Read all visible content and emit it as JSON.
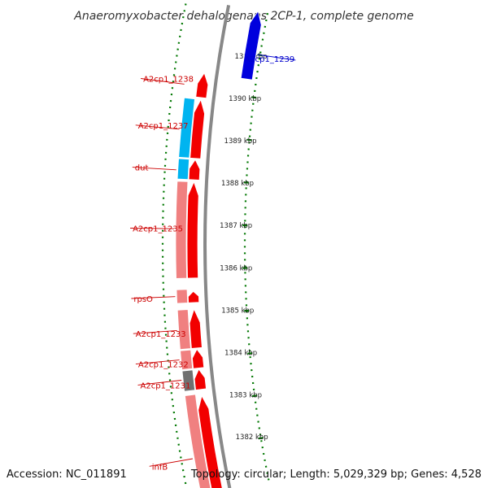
{
  "title": "Anaeromyxobacter dehalogenans 2CP-1, complete genome",
  "accession": "Accession: NC_011891",
  "summary": "Topology: circular; Length: 5,029,329 bp; Genes: 4,528",
  "colors": {
    "cds_forward": "#f20000",
    "cds_reverse": "#f08080",
    "highlight_cyan": "#00b4f0",
    "unknown_gray": "#707070",
    "selected_blue": "#0000dd",
    "backbone": "#888888",
    "scale_dots": "#007700",
    "label_red": "#cc0000",
    "label_blue": "#0000cc"
  },
  "scale": {
    "unit": "kbp",
    "ticks": [
      "1382 kbp",
      "1383 kbp",
      "1384 kbp",
      "1385 kbp",
      "1386 kbp",
      "1387 kbp",
      "1388 kbp",
      "1389 kbp",
      "1390 kbp",
      "1391 kbp"
    ]
  },
  "genes": [
    {
      "label": "infB",
      "start": 1381.0,
      "end": 1383.15,
      "track": "outer",
      "color": "cds_forward"
    },
    {
      "label": "infB",
      "start": 1381.0,
      "end": 1383.2,
      "track": "inner",
      "color": "cds_reverse"
    },
    {
      "label": "A2cp1_1231",
      "start": 1383.3,
      "end": 1383.75,
      "track": "outer",
      "color": "cds_forward"
    },
    {
      "label": "A2cp1_1231",
      "start": 1383.3,
      "end": 1383.75,
      "track": "inner",
      "color": "unknown_gray"
    },
    {
      "label": "A2cp1_1232",
      "start": 1383.78,
      "end": 1384.2,
      "track": "outer",
      "color": "cds_forward"
    },
    {
      "label": "A2cp1_1232",
      "start": 1383.78,
      "end": 1384.2,
      "track": "inner",
      "color": "cds_reverse"
    },
    {
      "label": "A2cp1_1233",
      "start": 1384.23,
      "end": 1385.1,
      "track": "outer",
      "color": "cds_forward"
    },
    {
      "label": "A2cp1_1233",
      "start": 1384.23,
      "end": 1385.1,
      "track": "inner",
      "color": "cds_reverse"
    },
    {
      "label": "rpsO",
      "start": 1385.25,
      "end": 1385.5,
      "track": "outer",
      "color": "cds_forward"
    },
    {
      "label": "rpsO",
      "start": 1385.25,
      "end": 1385.55,
      "track": "inner",
      "color": "cds_reverse"
    },
    {
      "label": "A2cp1_1235",
      "start": 1385.8,
      "end": 1387.95,
      "track": "outer",
      "color": "cds_forward"
    },
    {
      "label": "A2cp1_1235",
      "start": 1385.8,
      "end": 1387.95,
      "track": "inner",
      "color": "cds_reverse"
    },
    {
      "label": "dut",
      "start": 1388.0,
      "end": 1388.45,
      "track": "outer",
      "color": "cds_forward"
    },
    {
      "label": "dut",
      "start": 1388.0,
      "end": 1388.45,
      "track": "inner",
      "color": "highlight_cyan"
    },
    {
      "label": "A2cp1_1237",
      "start": 1388.48,
      "end": 1389.8,
      "track": "outer",
      "color": "cds_forward"
    },
    {
      "label": "A2cp1_1237",
      "start": 1388.48,
      "end": 1389.8,
      "track": "inner",
      "color": "highlight_cyan"
    },
    {
      "label": "A2cp1_1238",
      "start": 1389.85,
      "end": 1390.4,
      "track": "outer",
      "color": "cds_forward"
    },
    {
      "label": "A2cp1_1239",
      "start": 1390.4,
      "end": 1392.0,
      "track": "selected",
      "color": "selected_blue"
    }
  ],
  "gene_labels": [
    {
      "text": "infB",
      "pos": 1381.8,
      "color": "label_red",
      "side": "right"
    },
    {
      "text": "A2cp1_1231",
      "pos": 1383.55,
      "color": "label_red",
      "side": "right"
    },
    {
      "text": "A2cp1_1232",
      "pos": 1384.0,
      "color": "label_red",
      "side": "right"
    },
    {
      "text": "A2cp1_1233",
      "pos": 1384.65,
      "color": "label_red",
      "side": "right"
    },
    {
      "text": "rpsO",
      "pos": 1385.4,
      "color": "label_red",
      "side": "right"
    },
    {
      "text": "A2cp1_1235",
      "pos": 1386.9,
      "color": "label_red",
      "side": "right"
    },
    {
      "text": "dut",
      "pos": 1388.2,
      "color": "label_red",
      "side": "right"
    },
    {
      "text": "A2cp1_1237",
      "pos": 1389.1,
      "color": "label_red",
      "side": "right"
    },
    {
      "text": "A2cp1_1238",
      "pos": 1390.1,
      "color": "label_red",
      "side": "right"
    },
    {
      "text": "A2cp1_1239",
      "pos": 1391.0,
      "color": "label_blue",
      "side": "left"
    }
  ]
}
